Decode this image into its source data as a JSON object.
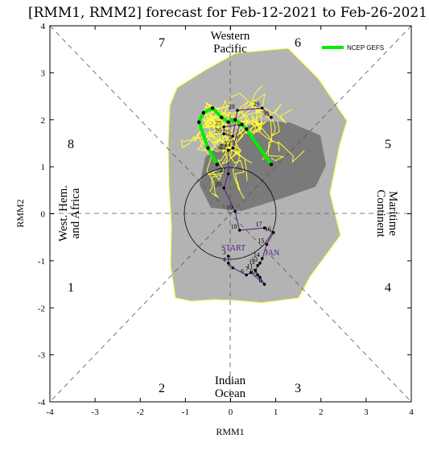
{
  "chart_data": {
    "type": "scatter",
    "title": "[RMM1, RMM2] forecast for Feb-12-2021 to Feb-26-2021",
    "xlabel": "RMM1",
    "ylabel": "RMM2",
    "xlim": [
      -4,
      4
    ],
    "ylim": [
      -4,
      4
    ],
    "xticks": [
      "-4",
      "-3",
      "-2",
      "-1",
      "0",
      "1",
      "2",
      "3",
      "4"
    ],
    "yticks": [
      "-4",
      "-3",
      "-2",
      "-1",
      "0",
      "1",
      "2",
      "3",
      "4"
    ],
    "phases": [
      "1",
      "2",
      "3",
      "4",
      "5",
      "6",
      "7",
      "8"
    ],
    "regions": {
      "top": [
        "Western",
        "Pacific"
      ],
      "bottom": [
        "Indian",
        "Ocean"
      ],
      "left": [
        "West. Hem.",
        "and Africa"
      ],
      "right": [
        "Maritime",
        "Continent"
      ]
    },
    "legend": {
      "label": "NCEP GEFS",
      "color": "#00ee00",
      "position": "top-right"
    },
    "start_label": "START",
    "month_label": "JAN",
    "colors": {
      "outer_spread": "#b3b3b3",
      "inner_spread": "#7a7a7a",
      "members": "#ffff33",
      "ensemble_mean": "#00ee00",
      "observed": "#5a1a8c"
    },
    "observed": {
      "labels": [
        "3",
        "4",
        "5",
        "6",
        "7",
        "8",
        "9",
        "10",
        "11",
        "12",
        "13",
        "14",
        "15",
        "16",
        "17",
        "18",
        "19",
        "20",
        "21",
        "22",
        "23",
        "24",
        "25",
        "26",
        "27",
        "28",
        "29",
        "30"
      ],
      "points": [
        [
          -0.05,
          -0.9
        ],
        [
          -0.05,
          -1.05
        ],
        [
          0.05,
          -1.15
        ],
        [
          0.35,
          -1.3
        ],
        [
          0.45,
          -1.25
        ],
        [
          0.75,
          -1.5
        ],
        [
          0.65,
          -1.35
        ],
        [
          0.6,
          -1.3
        ],
        [
          0.55,
          -1.2
        ],
        [
          0.6,
          -1.1
        ],
        [
          0.65,
          -1.05
        ],
        [
          0.7,
          -0.95
        ],
        [
          0.8,
          -0.65
        ],
        [
          0.95,
          -0.4
        ],
        [
          0.75,
          -0.3
        ],
        [
          0.2,
          -0.35
        ],
        [
          0.1,
          0.05
        ],
        [
          -0.15,
          0.55
        ],
        [
          -0.05,
          0.85
        ],
        [
          -0.05,
          1.35
        ],
        [
          0.05,
          1.4
        ],
        [
          0.2,
          1.9
        ],
        [
          -0.15,
          1.85
        ],
        [
          -0.15,
          1.7
        ],
        [
          0.05,
          1.65
        ],
        [
          0.15,
          2.2
        ],
        [
          0.7,
          2.25
        ],
        [
          0.9,
          2.05
        ]
      ]
    },
    "ensemble_mean": [
      [
        -0.3,
        1.05
      ],
      [
        -0.5,
        1.4
      ],
      [
        -0.7,
        1.95
      ],
      [
        -0.6,
        2.15
      ],
      [
        -0.4,
        2.25
      ],
      [
        -0.2,
        2.05
      ],
      [
        -0.05,
        1.95
      ],
      [
        0.1,
        2.0
      ],
      [
        0.25,
        1.9
      ],
      [
        0.35,
        1.8
      ],
      [
        0.9,
        1.05
      ]
    ]
  }
}
